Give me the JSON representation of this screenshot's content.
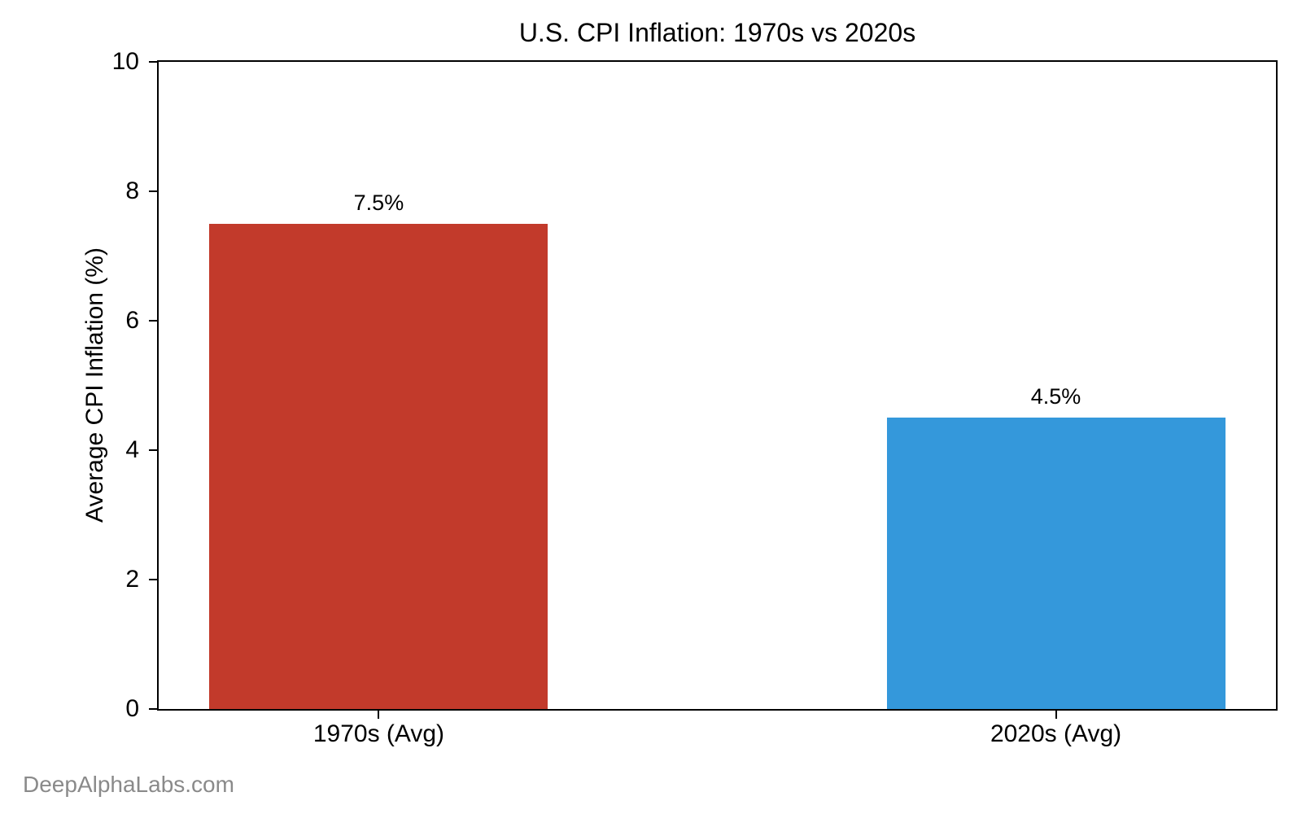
{
  "chart_data": {
    "type": "bar",
    "title": "U.S. CPI Inflation: 1970s vs 2020s",
    "xlabel": "",
    "ylabel": "Average CPI Inflation (%)",
    "categories": [
      "1970s (Avg)",
      "2020s (Avg)"
    ],
    "values": [
      7.5,
      4.5
    ],
    "data_labels": [
      "7.5%",
      "4.5%"
    ],
    "bar_colors": [
      "#c23a2b",
      "#3498db"
    ],
    "ylim": [
      0,
      10
    ],
    "yticks": [
      0,
      2,
      4,
      6,
      8,
      10
    ],
    "xlim": [
      -0.325,
      1.325
    ],
    "bar_width": 0.5,
    "grid": false,
    "legend": false,
    "axis_color": "#000000"
  },
  "watermark": {
    "text": "DeepAlphaLabs.com",
    "color": "#8a8a8a"
  }
}
